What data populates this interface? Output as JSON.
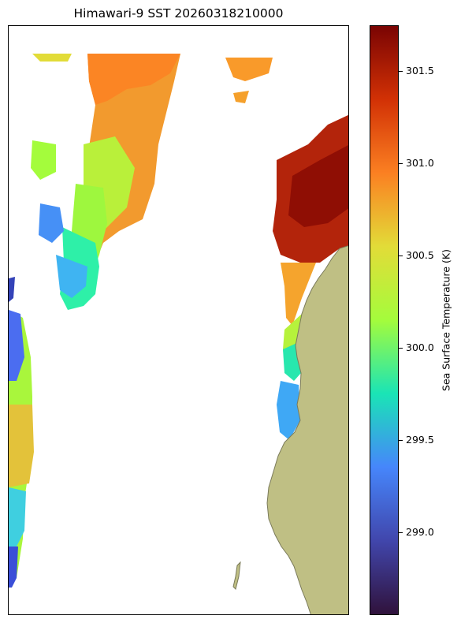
{
  "title": "Himawari-9 SST 20260318210000",
  "colorbar": {
    "label": "Sea Surface Temperature (K)",
    "min": 298.55,
    "max": 301.75,
    "ticks": [
      {
        "value": 299.0,
        "label": "299.0"
      },
      {
        "value": 299.5,
        "label": "299.5"
      },
      {
        "value": 300.0,
        "label": "300.0"
      },
      {
        "value": 300.5,
        "label": "300.5"
      },
      {
        "value": 301.0,
        "label": "301.0"
      },
      {
        "value": 301.5,
        "label": "301.5"
      }
    ],
    "colormap": [
      "#30123b",
      "#4146ac",
      "#4686fb",
      "#1ae4b6",
      "#a4fc3c",
      "#e2dc38",
      "#fb8022",
      "#d23105",
      "#7a0403"
    ]
  },
  "colors": {
    "land": "#bfbf84",
    "coastline": "#7a7a5a",
    "frame": "#000000"
  }
}
